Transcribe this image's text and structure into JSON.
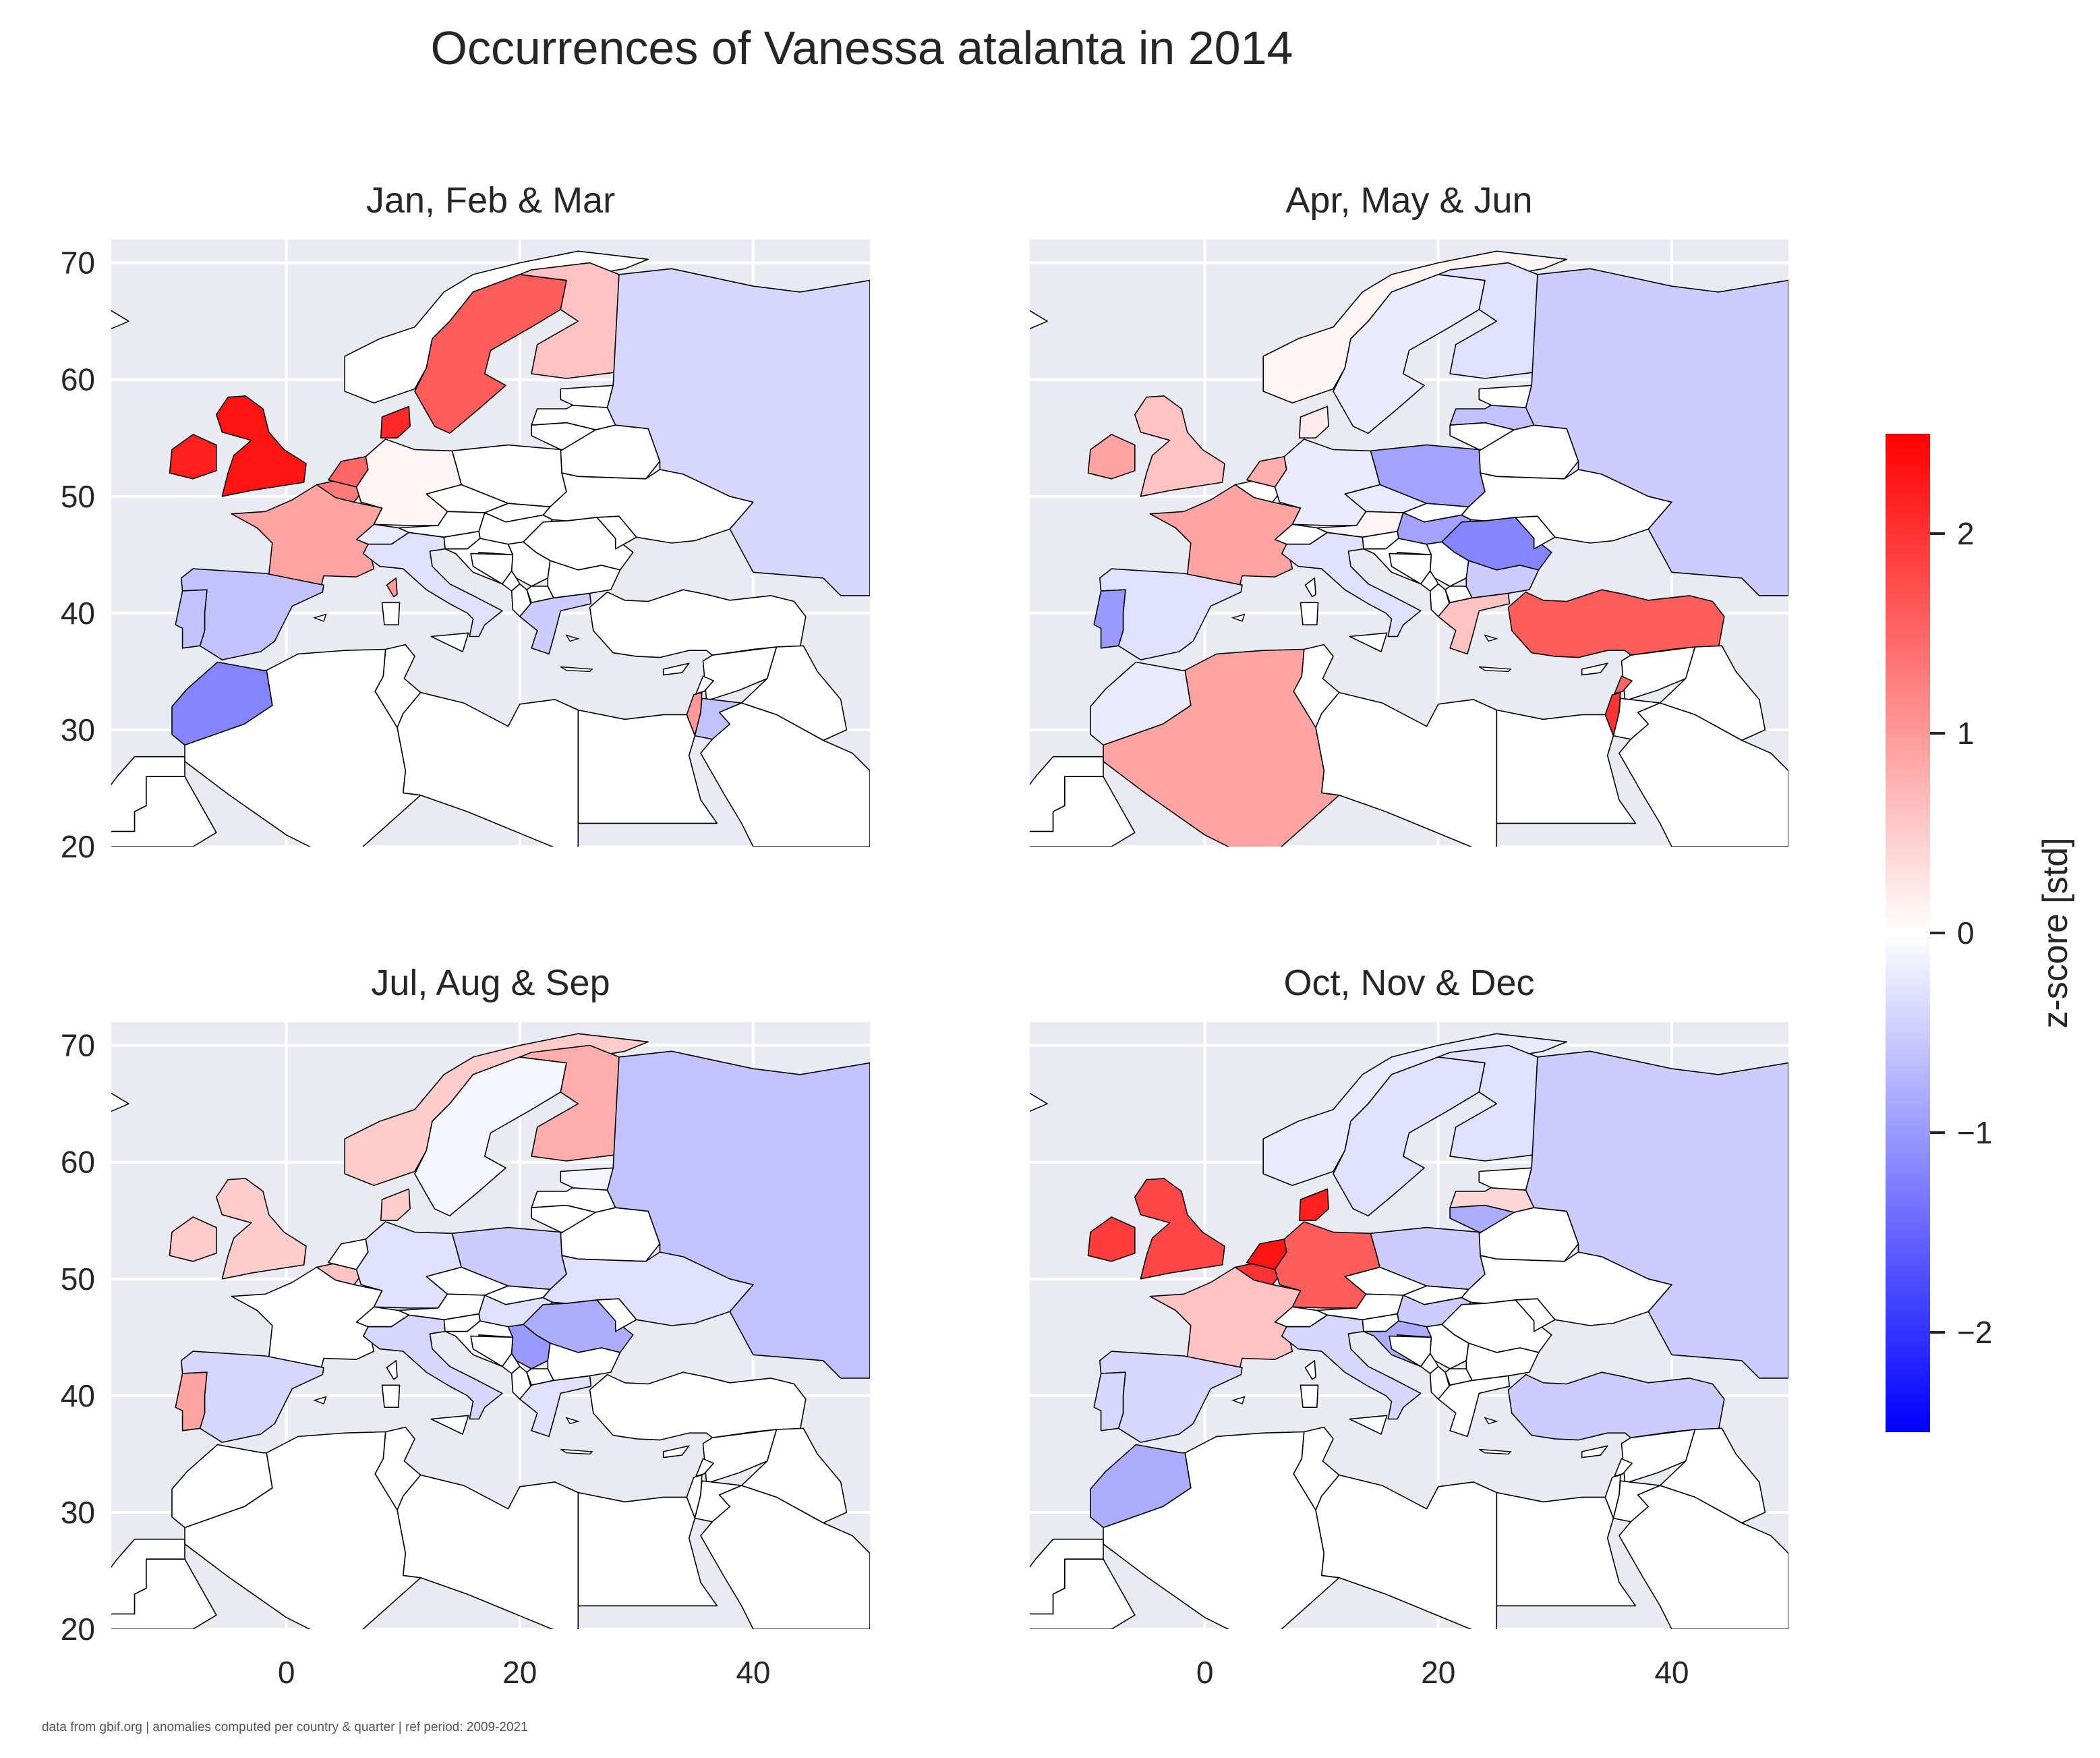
{
  "chart_data": {
    "type": "choropleth",
    "title": "Occurrences of Vanessa atalanta in 2014",
    "footnote": "data from gbif.org | anomalies computed per country & quarter | ref period: 2009-2021",
    "colorbar": {
      "label": "z-score [std]",
      "range": [
        -2.5,
        2.5
      ],
      "cmap": "bwr",
      "ticks": [
        2,
        1,
        0,
        -1,
        -2
      ],
      "tick_labels": [
        "2",
        "1",
        "0",
        "−1",
        "−2"
      ]
    },
    "axes": {
      "xlim": [
        -15,
        50
      ],
      "ylim": [
        20,
        72
      ],
      "xticks": [
        0,
        20,
        40
      ],
      "yticks": [
        70,
        60,
        50,
        40,
        30,
        20
      ],
      "grid": true
    },
    "panels": [
      {
        "title": "Jan, Feb & Mar",
        "values": {
          "United Kingdom": 2.3,
          "Ireland": 2.2,
          "Norway": null,
          "Sweden": 1.6,
          "Finland": 0.6,
          "Denmark": 2.1,
          "Netherlands": 1.5,
          "Belgium": 1.3,
          "Germany": 0.1,
          "France": 0.9,
          "Spain": -0.6,
          "Portugal": -0.6,
          "Italy": -0.3,
          "Switzerland": -0.2,
          "Greece": -0.5,
          "Morocco": -1.2,
          "Russia": -0.4,
          "Israel": 1.0,
          "Jordan": -0.6,
          "Corsica": 1.0
        }
      },
      {
        "title": "Apr, May & Jun",
        "values": {
          "United Kingdom": 0.6,
          "Ireland": 0.9,
          "Norway": 0.1,
          "Sweden": -0.2,
          "Finland": -0.3,
          "Denmark": 0.2,
          "Netherlands": 0.8,
          "Germany": -0.2,
          "Poland": -0.9,
          "France": 0.9,
          "Spain": -0.3,
          "Portugal": -1.0,
          "Italy": -0.3,
          "Romania": -1.2,
          "Hungary": -0.9,
          "Austria": 0.1,
          "Czechia": -0.2,
          "Greece": 0.6,
          "Bulgaria": -0.5,
          "Turkey": 1.6,
          "Algeria": 0.9,
          "Morocco": -0.2,
          "Latvia": -0.6,
          "Russia": -0.5,
          "Israel": 2.0,
          "Lebanon": 1.5
        }
      },
      {
        "title": "Jul, Aug & Sep",
        "values": {
          "United Kingdom": 0.5,
          "Ireland": 0.5,
          "Norway": 0.5,
          "Sweden": -0.1,
          "Finland": 0.8,
          "Denmark": 0.5,
          "Belgium": 0.6,
          "Germany": -0.3,
          "Poland": -0.5,
          "France": 0.0,
          "Spain": -0.4,
          "Portugal": 0.9,
          "Italy": -0.4,
          "Romania": -0.8,
          "Hungary": -0.3,
          "Ukraine": -0.3,
          "Estonia": -0.1,
          "Russia": -0.6,
          "Serbia": -1.0,
          "Greece": -0.3
        }
      },
      {
        "title": "Oct, Nov & Dec",
        "values": {
          "United Kingdom": 1.8,
          "Ireland": 1.9,
          "Norway": -0.2,
          "Sweden": -0.3,
          "Finland": -0.3,
          "Denmark": 2.2,
          "Netherlands": 2.3,
          "Belgium": 2.0,
          "Germany": 1.6,
          "France": 0.6,
          "Spain": -0.4,
          "Portugal": -0.4,
          "Italy": -0.4,
          "Poland": -0.5,
          "Lithuania": -0.8,
          "Latvia": 0.4,
          "Hungary": -0.5,
          "Croatia": -0.8,
          "Turkey": -0.5,
          "Morocco": -0.8,
          "Russia": -0.5
        }
      }
    ]
  }
}
